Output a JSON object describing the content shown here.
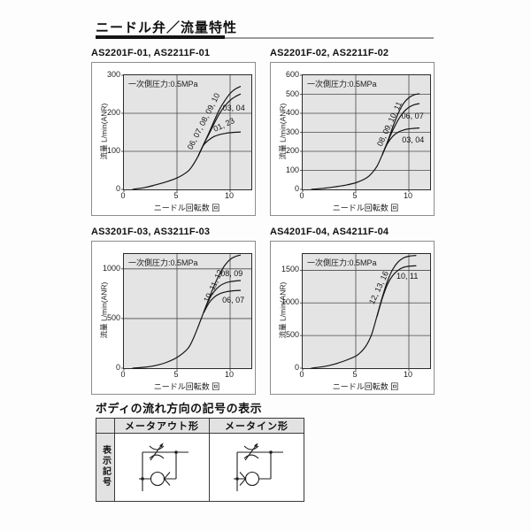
{
  "page": {
    "main_title": "ニードル弁／流量特性",
    "symbols_title": "ボディの流れ方向の記号の表示"
  },
  "chart_data": [
    {
      "type": "line",
      "title": "AS2201F-01, AS2211F-01",
      "annotation": "一次側圧力:0.5MPa",
      "xlabel": "ニードル回転数 回",
      "ylabel": "流量 L/min(ANR)",
      "xlim": [
        0,
        12
      ],
      "ylim": [
        0,
        300
      ],
      "xticks": [
        0,
        5,
        10
      ],
      "yticks": [
        0,
        100,
        200,
        300
      ],
      "grid": true,
      "legend_position": "top-left",
      "series": [
        {
          "name": "06, 07, 08, 09, 10",
          "label": {
            "x": 7.5,
            "y": 178,
            "rot": -63
          },
          "points": [
            [
              0.8,
              0
            ],
            [
              2,
              5
            ],
            [
              3,
              12
            ],
            [
              4,
              20
            ],
            [
              5,
              30
            ],
            [
              6,
              47
            ],
            [
              6.5,
              64
            ],
            [
              7,
              88
            ],
            [
              7.5,
              118
            ],
            [
              8,
              148
            ],
            [
              8.5,
              180
            ],
            [
              9,
              210
            ],
            [
              9.5,
              233
            ],
            [
              10,
              252
            ],
            [
              10.5,
              264
            ],
            [
              11,
              271
            ]
          ]
        },
        {
          "name": "03, 04",
          "label": {
            "x": 10.35,
            "y": 215,
            "rot": 0
          },
          "points": [
            [
              7,
              88
            ],
            [
              7.5,
              118
            ],
            [
              8,
              145
            ],
            [
              8.5,
              173
            ],
            [
              9,
              199
            ],
            [
              9.5,
              219
            ],
            [
              10,
              234
            ],
            [
              10.5,
              244
            ],
            [
              11,
              251
            ]
          ]
        },
        {
          "name": "01, 23",
          "label": {
            "x": 9.4,
            "y": 170,
            "rot": -25
          },
          "points": [
            [
              7,
              88
            ],
            [
              7.5,
              116
            ],
            [
              8,
              130
            ],
            [
              8.5,
              139
            ],
            [
              9,
              144
            ],
            [
              9.5,
              147
            ],
            [
              10,
              149
            ],
            [
              11,
              151
            ]
          ]
        }
      ]
    },
    {
      "type": "line",
      "title": "AS2201F-02, AS2211F-02",
      "annotation": "一次側圧力:0.5MPa",
      "xlabel": "ニードル回転数 回",
      "ylabel": "流量 L/min(ANR)",
      "xlim": [
        0,
        12
      ],
      "ylim": [
        0,
        600
      ],
      "xticks": [
        0,
        5,
        10
      ],
      "yticks": [
        0,
        100,
        200,
        300,
        400,
        500,
        600
      ],
      "grid": true,
      "legend_position": "top-left",
      "series": [
        {
          "name": "08, 09, 10, 11",
          "label": {
            "x": 8.2,
            "y": 345,
            "rot": -65
          },
          "points": [
            [
              0.8,
              0
            ],
            [
              2,
              6
            ],
            [
              3,
              13
            ],
            [
              4,
              22
            ],
            [
              5,
              35
            ],
            [
              6,
              60
            ],
            [
              6.5,
              84
            ],
            [
              7,
              122
            ],
            [
              7.5,
              183
            ],
            [
              8,
              252
            ],
            [
              8.5,
              330
            ],
            [
              9,
              400
            ],
            [
              9.5,
              452
            ],
            [
              10,
              482
            ],
            [
              10.5,
              497
            ],
            [
              11,
              503
            ]
          ]
        },
        {
          "name": "06, 07",
          "label": {
            "x": 10.35,
            "y": 386,
            "rot": 0
          },
          "points": [
            [
              7.5,
              183
            ],
            [
              8,
              250
            ],
            [
              8.5,
              312
            ],
            [
              9,
              366
            ],
            [
              9.5,
              406
            ],
            [
              10,
              431
            ],
            [
              10.5,
              445
            ],
            [
              11,
              451
            ]
          ]
        },
        {
          "name": "03, 04",
          "label": {
            "x": 10.4,
            "y": 262,
            "rot": 0
          },
          "points": [
            [
              7.5,
              183
            ],
            [
              8,
              243
            ],
            [
              8.5,
              280
            ],
            [
              9,
              301
            ],
            [
              9.5,
              312
            ],
            [
              10,
              318
            ],
            [
              10.5,
              321
            ],
            [
              11,
              323
            ]
          ]
        }
      ]
    },
    {
      "type": "line",
      "title": "AS3201F-03, AS3211F-03",
      "annotation": "一次側圧力:0.5MPa",
      "xlabel": "ニードル回転数 回",
      "ylabel": "流量 L/min(ANR)",
      "xlim": [
        0,
        12
      ],
      "ylim": [
        0,
        1150
      ],
      "xticks": [
        0,
        5,
        10
      ],
      "yticks": [
        0,
        500,
        1000
      ],
      "grid": true,
      "legend_position": "top-left",
      "series": [
        {
          "name": "10, 11, 12",
          "label": {
            "x": 8.4,
            "y": 830,
            "rot": -65
          },
          "points": [
            [
              0.8,
              0
            ],
            [
              2,
              10
            ],
            [
              3,
              28
            ],
            [
              4,
              58
            ],
            [
              5,
              108
            ],
            [
              6,
              195
            ],
            [
              6.5,
              290
            ],
            [
              7,
              420
            ],
            [
              7.5,
              560
            ],
            [
              8,
              700
            ],
            [
              8.5,
              832
            ],
            [
              9,
              945
            ],
            [
              9.5,
              1035
            ],
            [
              10,
              1095
            ],
            [
              10.5,
              1125
            ],
            [
              11,
              1140
            ]
          ]
        },
        {
          "name": "08, 09",
          "label": {
            "x": 10.15,
            "y": 952,
            "rot": 0
          },
          "points": [
            [
              7.5,
              560
            ],
            [
              8,
              690
            ],
            [
              8.5,
              772
            ],
            [
              9,
              826
            ],
            [
              9.5,
              856
            ],
            [
              10,
              871
            ],
            [
              10.5,
              878
            ],
            [
              11,
              883
            ]
          ]
        },
        {
          "name": "06, 07",
          "label": {
            "x": 10.3,
            "y": 690,
            "rot": 0
          },
          "points": [
            [
              7.5,
              555
            ],
            [
              8,
              655
            ],
            [
              8.5,
              715
            ],
            [
              9,
              748
            ],
            [
              9.5,
              766
            ],
            [
              10,
              776
            ],
            [
              10.5,
              781
            ],
            [
              11,
              784
            ]
          ]
        }
      ]
    },
    {
      "type": "line",
      "title": "AS4201F-04, AS4211F-04",
      "annotation": "一次側圧力:0.5MPa",
      "xlabel": "ニードル回転数 回",
      "ylabel": "流量 L/min(ANR)",
      "xlim": [
        0,
        12
      ],
      "ylim": [
        0,
        1750
      ],
      "xticks": [
        0,
        5,
        10
      ],
      "yticks": [
        0,
        500,
        1000,
        1500
      ],
      "grid": true,
      "legend_position": "top-left",
      "series": [
        {
          "name": "12, 13, 16",
          "label": {
            "x": 7.2,
            "y": 1230,
            "rot": -65
          },
          "points": [
            [
              0.8,
              0
            ],
            [
              2,
              25
            ],
            [
              3,
              62
            ],
            [
              4,
              115
            ],
            [
              5,
              185
            ],
            [
              5.5,
              250
            ],
            [
              6,
              350
            ],
            [
              6.5,
              520
            ],
            [
              7,
              800
            ],
            [
              7.5,
              1090
            ],
            [
              8,
              1340
            ],
            [
              8.5,
              1520
            ],
            [
              9,
              1630
            ],
            [
              9.5,
              1690
            ],
            [
              10,
              1716
            ],
            [
              10.7,
              1728
            ]
          ]
        },
        {
          "name": "10, 11",
          "label": {
            "x": 9.85,
            "y": 1408,
            "rot": 0
          },
          "points": [
            [
              7,
              790
            ],
            [
              7.5,
              1070
            ],
            [
              8,
              1290
            ],
            [
              8.5,
              1425
            ],
            [
              9,
              1502
            ],
            [
              9.5,
              1545
            ],
            [
              10,
              1562
            ],
            [
              10.7,
              1570
            ]
          ]
        }
      ]
    }
  ],
  "symbol_table": {
    "row_header": "表示記号",
    "columns": [
      "メータアウト形",
      "メータイン形"
    ],
    "cells": [
      "meter-out-symbol",
      "meter-in-symbol"
    ]
  }
}
